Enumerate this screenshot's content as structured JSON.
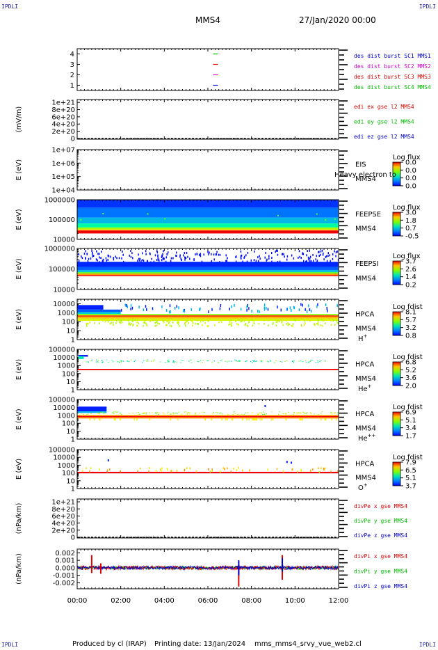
{
  "corner_labels": {
    "top_left": "IPDLI",
    "top_right": "IPDLI",
    "bottom_left": "IPDLI",
    "bottom_right": "IPDLI"
  },
  "header": {
    "spacecraft": "MMS4",
    "datetime": "27/Jan/2020 00:00"
  },
  "footer": {
    "produced_by": "Produced by cl (IRAP)",
    "printing_date": "Printing date: 13/Jan/2024",
    "file_name": "mms_mms4_srvy_vue_web2.cl"
  },
  "colors": {
    "blue": "#0000cc",
    "red": "#dd0000",
    "magenta": "#cc00cc",
    "green": "#00bb00",
    "spectrogram_low": "#0000ff",
    "spectrogram_high": "#ff0000"
  },
  "chart_data": {
    "type": "multi-panel time series and spectrograms",
    "x_range": [
      "00:00",
      "12:00"
    ],
    "x_ticks": [
      "00:00",
      "02:00",
      "04:00",
      "06:00",
      "08:00",
      "10:00",
      "12:00"
    ],
    "panels": [
      {
        "id": "burst",
        "type": "timeline",
        "yticks": [
          "1",
          "2",
          "3",
          "4"
        ],
        "ylim": [
          0.5,
          4.5
        ],
        "series": [
          {
            "label": "des dist burst SC1 MMS1",
            "color": "#0000cc",
            "y": 1,
            "x": "06:20"
          },
          {
            "label": "des dist burst SC2 MMS2",
            "color": "#cc00cc",
            "y": 2,
            "x": "06:20"
          },
          {
            "label": "des dist burst SC3 MMS3",
            "color": "#dd0000",
            "y": 3,
            "x": "06:20"
          },
          {
            "label": "des dist burst SC4 MMS4",
            "color": "#00bb00",
            "y": 4,
            "x": "06:20"
          }
        ]
      },
      {
        "id": "edi",
        "type": "line",
        "ylabel": "(mV/m)",
        "yticks": [
          "0",
          "2e+20",
          "4e+20",
          "6e+20",
          "8e+20",
          "1e+21"
        ],
        "ylim": [
          -2e+19,
          1.08e+21
        ],
        "series": [
          {
            "label": "edi ex gse l2 MMS4",
            "color": "#dd0000"
          },
          {
            "label": "edi ey gse l2 MMS4",
            "color": "#00bb00"
          },
          {
            "label": "edi ez gse l2 MMS4",
            "color": "#0000cc"
          }
        ]
      },
      {
        "id": "eis",
        "type": "spectrogram",
        "ylabel": "E (eV)",
        "yticks": [
          "1e+04",
          "1e+05",
          "1e+06",
          "1e+07"
        ],
        "log_decades": [
          4,
          7
        ],
        "side": [
          "EIS",
          "MMS4"
        ],
        "overlay_text": "Heavy electron to",
        "colorbar": {
          "title": "Log flux",
          "ticks": [
            "0.0",
            "0.0",
            "0.0",
            "0.0"
          ]
        }
      },
      {
        "id": "feepse",
        "type": "spectrogram",
        "ylabel": "E (eV)",
        "yticks": [
          "10000",
          "100000",
          "1000000"
        ],
        "log_decades": [
          4,
          6
        ],
        "side": [
          "FEEPSE",
          "MMS4"
        ],
        "colorbar": {
          "title": "Log flux",
          "ticks": [
            "3.0",
            "1.8",
            "0.7",
            "-0.5"
          ]
        }
      },
      {
        "id": "feepsi",
        "type": "spectrogram",
        "ylabel": "E (eV)",
        "yticks": [
          "10000",
          "100000",
          "1000000"
        ],
        "log_decades": [
          4,
          6
        ],
        "side": [
          "FEEPSI",
          "MMS4"
        ],
        "colorbar": {
          "title": "Log flux",
          "ticks": [
            "3.7",
            "2.6",
            "1.4",
            "0.2"
          ]
        }
      },
      {
        "id": "hpca_h",
        "type": "spectrogram",
        "ylabel": "E (eV)",
        "yticks": [
          "1",
          "10",
          "100",
          "1000",
          "10000"
        ],
        "log_decades": [
          0,
          4.5
        ],
        "side": [
          "HPCA",
          "MMS4"
        ],
        "species": "H",
        "species_sup": "+",
        "colorbar": {
          "title": "Log fdist",
          "ticks": [
            "8.1",
            "5.7",
            "3.2",
            "0.8"
          ]
        }
      },
      {
        "id": "hpca_he",
        "type": "spectrogram",
        "ylabel": "E (eV)",
        "yticks": [
          "1",
          "10",
          "100",
          "1000",
          "10000",
          "100000"
        ],
        "log_decades": [
          0,
          5
        ],
        "side": [
          "HPCA",
          "MMS4"
        ],
        "species": "He",
        "species_sup": "+",
        "colorbar": {
          "title": "Log fdist",
          "ticks": [
            "6.8",
            "5.2",
            "3.6",
            "2.0"
          ]
        }
      },
      {
        "id": "hpca_hepp",
        "type": "spectrogram",
        "ylabel": "E (eV)",
        "yticks": [
          "1",
          "10",
          "100",
          "1000",
          "10000",
          "100000"
        ],
        "log_decades": [
          0,
          5
        ],
        "side": [
          "HPCA",
          "MMS4"
        ],
        "species": "He",
        "species_sup": "++",
        "colorbar": {
          "title": "Log fdist",
          "ticks": [
            "6.9",
            "5.1",
            "3.4",
            "1.7"
          ]
        }
      },
      {
        "id": "hpca_o",
        "type": "spectrogram",
        "ylabel": "E (eV)",
        "yticks": [
          "1",
          "10",
          "100",
          "1000",
          "10000",
          "100000"
        ],
        "log_decades": [
          0,
          5
        ],
        "side": [
          "HPCA",
          "MMS4"
        ],
        "species": "O",
        "species_sup": "+",
        "colorbar": {
          "title": "Log fdist",
          "ticks": [
            "7.9",
            "6.5",
            "5.1",
            "3.7"
          ]
        }
      },
      {
        "id": "divpe",
        "type": "line",
        "ylabel": "(nPa/km)",
        "yticks": [
          "0",
          "2e+20",
          "4e+20",
          "6e+20",
          "8e+20",
          "1e+21"
        ],
        "ylim": [
          -2e+19,
          1.08e+21
        ],
        "series": [
          {
            "label": "divPe x gse MMS4",
            "color": "#dd0000"
          },
          {
            "label": "divPe y gse MMS4",
            "color": "#00bb00"
          },
          {
            "label": "divPe z gse MMS4",
            "color": "#0000cc"
          }
        ]
      },
      {
        "id": "divpi",
        "type": "line",
        "ylabel": "(nPa/km)",
        "yticks": [
          "-0.002",
          "-0.001",
          "0.000",
          "0.001",
          "0.002"
        ],
        "ylim": [
          -0.0028,
          0.0025
        ],
        "series": [
          {
            "label": "divPi x gse MMS4",
            "color": "#dd0000"
          },
          {
            "label": "divPi y gse MMS4",
            "color": "#00bb00"
          },
          {
            "label": "divPi z gse MMS4",
            "color": "#0000cc"
          }
        ],
        "spikes": [
          {
            "t": "00:40",
            "min": -0.0007,
            "max": 0.0017,
            "color": "#dd0000"
          },
          {
            "t": "01:05",
            "min": -0.0008,
            "max": 0.0006,
            "color": "#dd0000"
          },
          {
            "t": "07:25",
            "min": -0.0025,
            "max": 0.0004,
            "color": "#dd0000"
          },
          {
            "t": "07:25",
            "min": -0.001,
            "max": 0.001,
            "color": "#0000cc"
          },
          {
            "t": "09:25",
            "min": -0.0016,
            "max": 0.0017,
            "color": "#dd0000"
          },
          {
            "t": "09:25",
            "min": -0.0005,
            "max": 0.0013,
            "color": "#0000cc"
          }
        ]
      }
    ]
  }
}
